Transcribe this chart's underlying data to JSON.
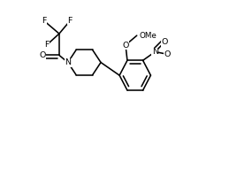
{
  "bg_color": "#ffffff",
  "line_color": "#000000",
  "lw": 1.15,
  "fs": 6.8,
  "xlim": [
    0,
    251
  ],
  "ylim": [
    0,
    174
  ],
  "note": "2,2,2-trifluoro-1-[4-(2-methoxy-3-nitrophenyl)piperidin-1-yl]ethanone"
}
